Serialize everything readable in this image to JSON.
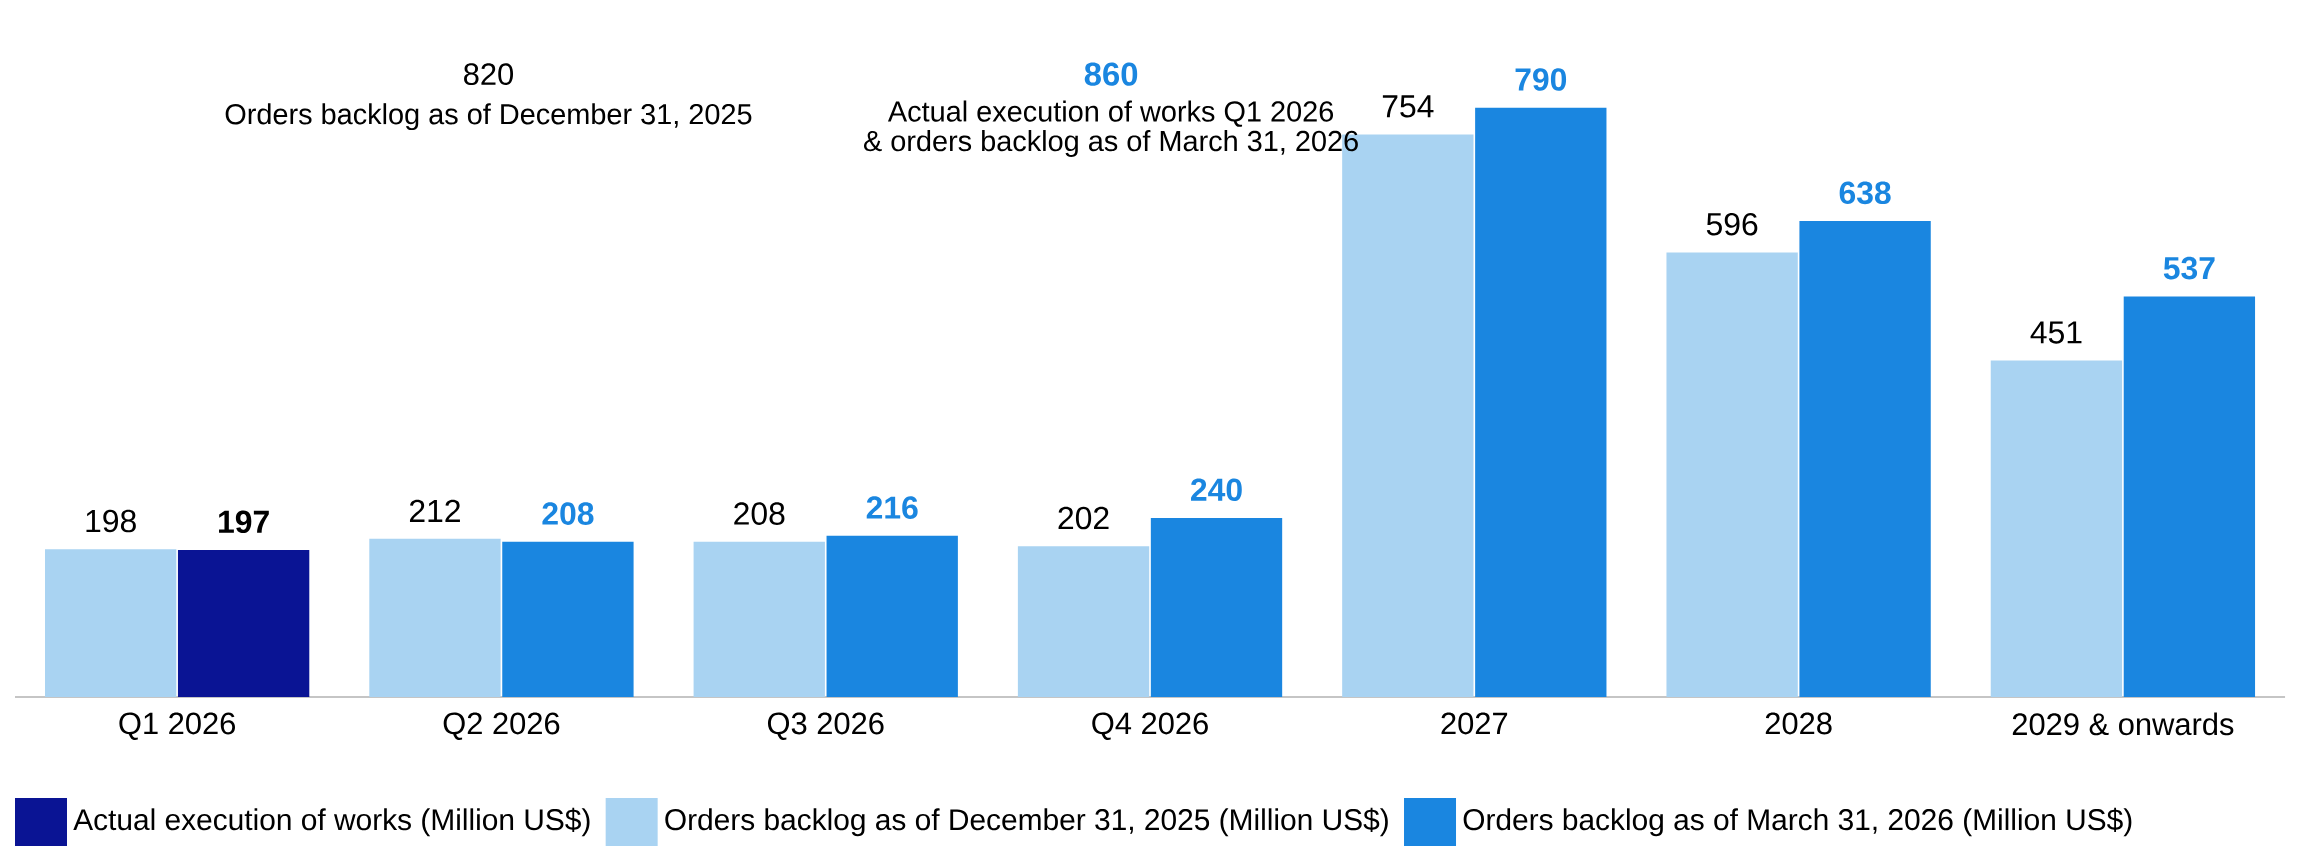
{
  "chart_data": {
    "type": "bar",
    "categories": [
      "Q1 2026",
      "Q2 2026",
      "Q3 2026",
      "Q4 2026",
      "2027",
      "2028",
      "2029 & onwards"
    ],
    "series": [
      {
        "name": "Actual execution of works (Million US$)",
        "color": "#0a1494",
        "values": [
          197,
          null,
          null,
          null,
          null,
          null,
          null
        ]
      },
      {
        "name": "Orders backlog as of December 31, 2025 (Million US$)",
        "color": "#a9d3f2",
        "values": [
          198,
          212,
          208,
          202,
          754,
          596,
          451
        ]
      },
      {
        "name": "Orders backlog as of March 31, 2026 (Million US$)",
        "color": "#1a86e0",
        "values": [
          null,
          208,
          216,
          240,
          790,
          638,
          537
        ]
      }
    ],
    "data_labels": true,
    "legend": "bottom",
    "annotations": [
      "820",
      "Orders backlog as of December 31, 2025",
      "860",
      "Actual execution of works Q1 2026",
      "& orders backlog as of March 31, 2026"
    ]
  }
}
